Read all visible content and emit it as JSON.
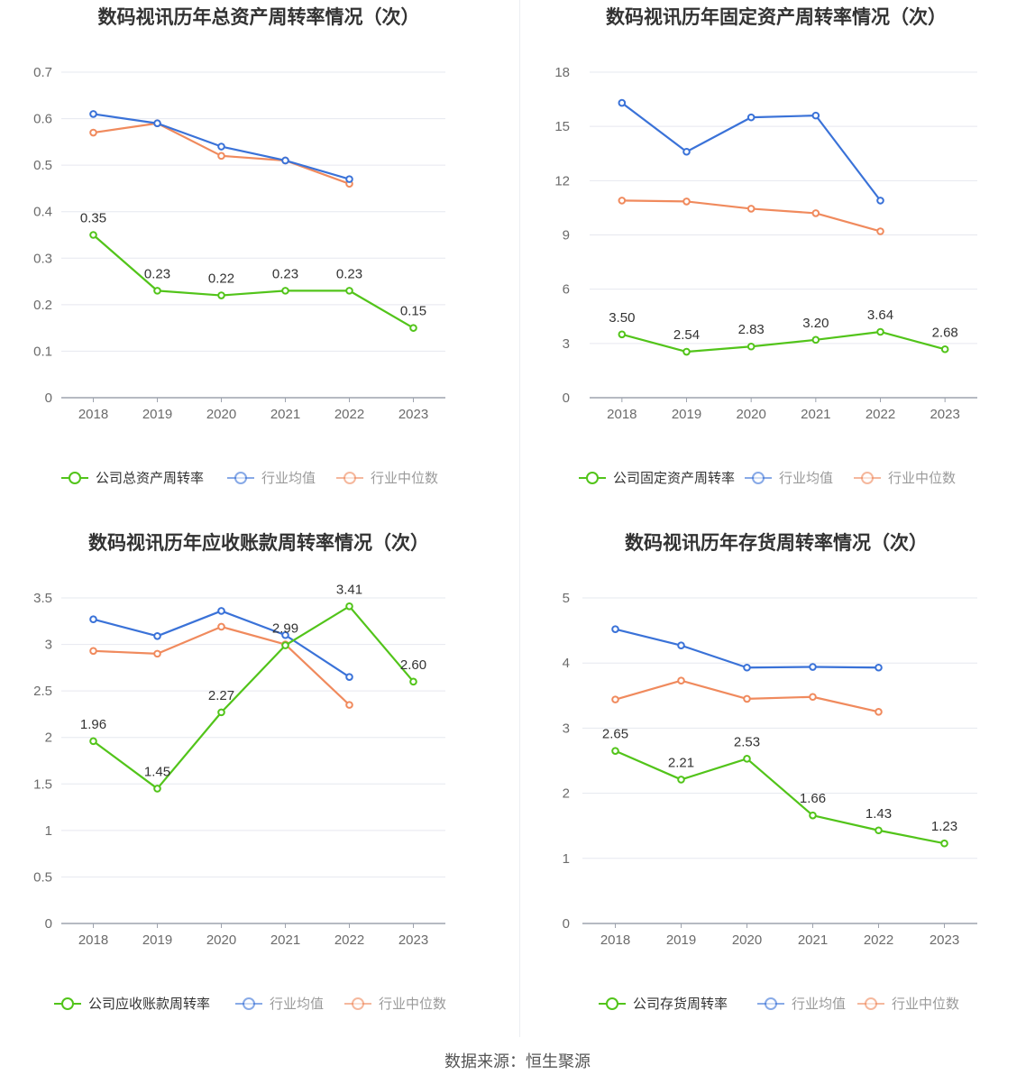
{
  "source": "数据来源：恒生聚源",
  "colors": {
    "company": "#52c41a",
    "avg": "#3a72d8",
    "median": "#f08a5d",
    "grid": "#e6e8ef",
    "axis": "#9ea3ae"
  },
  "legend_icon": "circle-line-icon",
  "chart_data": [
    {
      "type": "line",
      "title": "数码视讯历年总资产周转率情况（次）",
      "categories": [
        "2018",
        "2019",
        "2020",
        "2021",
        "2022",
        "2023"
      ],
      "ylim": [
        0,
        0.7
      ],
      "yticks": [
        0,
        0.1,
        0.2,
        0.3,
        0.4,
        0.5,
        0.6,
        0.7
      ],
      "ytick_labels": [
        "0",
        "0.1",
        "0.2",
        "0.3",
        "0.4",
        "0.5",
        "0.6",
        "0.7"
      ],
      "grid": true,
      "legend": "bottom",
      "series": [
        {
          "name": "公司总资产周转率",
          "color": "#52c41a",
          "values": [
            0.35,
            0.23,
            0.22,
            0.23,
            0.23,
            0.15
          ],
          "labels": [
            "0.35",
            "0.23",
            "0.22",
            "0.23",
            "0.23",
            "0.15"
          ]
        },
        {
          "name": "行业均值",
          "color": "#3a72d8",
          "values": [
            0.61,
            0.59,
            0.54,
            0.51,
            0.47,
            null
          ]
        },
        {
          "name": "行业中位数",
          "color": "#f08a5d",
          "values": [
            0.57,
            0.59,
            0.52,
            0.51,
            0.46,
            null
          ]
        }
      ]
    },
    {
      "type": "line",
      "title": "数码视讯历年固定资产周转率情况（次）",
      "categories": [
        "2018",
        "2019",
        "2020",
        "2021",
        "2022",
        "2023"
      ],
      "ylim": [
        0,
        18
      ],
      "yticks": [
        0,
        3,
        6,
        9,
        12,
        15,
        18
      ],
      "ytick_labels": [
        "0",
        "3",
        "6",
        "9",
        "12",
        "15",
        "18"
      ],
      "grid": true,
      "legend": "bottom",
      "series": [
        {
          "name": "公司固定资产周转率",
          "color": "#52c41a",
          "values": [
            3.5,
            2.54,
            2.83,
            3.2,
            3.64,
            2.68
          ],
          "labels": [
            "3.50",
            "2.54",
            "2.83",
            "3.20",
            "3.64",
            "2.68"
          ]
        },
        {
          "name": "行业均值",
          "color": "#3a72d8",
          "values": [
            16.3,
            13.6,
            15.5,
            15.6,
            10.9,
            null
          ]
        },
        {
          "name": "行业中位数",
          "color": "#f08a5d",
          "values": [
            10.9,
            10.85,
            10.45,
            10.2,
            9.2,
            null
          ]
        }
      ]
    },
    {
      "type": "line",
      "title": "数码视讯历年应收账款周转率情况（次）",
      "categories": [
        "2018",
        "2019",
        "2020",
        "2021",
        "2022",
        "2023"
      ],
      "ylim": [
        0,
        3.5
      ],
      "yticks": [
        0,
        0.5,
        1,
        1.5,
        2,
        2.5,
        3,
        3.5
      ],
      "ytick_labels": [
        "0",
        "0.5",
        "1",
        "1.5",
        "2",
        "2.5",
        "3",
        "3.5"
      ],
      "grid": true,
      "legend": "bottom",
      "series": [
        {
          "name": "公司应收账款周转率",
          "color": "#52c41a",
          "values": [
            1.96,
            1.45,
            2.27,
            2.99,
            3.41,
            2.6
          ],
          "labels": [
            "1.96",
            "1.45",
            "2.27",
            "2.99",
            "3.41",
            "2.60"
          ]
        },
        {
          "name": "行业均值",
          "color": "#3a72d8",
          "values": [
            3.27,
            3.09,
            3.36,
            3.1,
            2.65,
            null
          ]
        },
        {
          "name": "行业中位数",
          "color": "#f08a5d",
          "values": [
            2.93,
            2.9,
            3.19,
            3.0,
            2.35,
            null
          ]
        }
      ]
    },
    {
      "type": "line",
      "title": "数码视讯历年存货周转率情况（次）",
      "categories": [
        "2018",
        "2019",
        "2020",
        "2021",
        "2022",
        "2023"
      ],
      "ylim": [
        0,
        5
      ],
      "yticks": [
        0,
        1,
        2,
        3,
        4,
        5
      ],
      "ytick_labels": [
        "0",
        "1",
        "2",
        "3",
        "4",
        "5"
      ],
      "grid": true,
      "legend": "bottom",
      "series": [
        {
          "name": "公司存货周转率",
          "color": "#52c41a",
          "values": [
            2.65,
            2.21,
            2.53,
            1.66,
            1.43,
            1.23
          ],
          "labels": [
            "2.65",
            "2.21",
            "2.53",
            "1.66",
            "1.43",
            "1.23"
          ]
        },
        {
          "name": "行业均值",
          "color": "#3a72d8",
          "values": [
            4.52,
            4.27,
            3.93,
            3.94,
            3.93,
            null
          ]
        },
        {
          "name": "行业中位数",
          "color": "#f08a5d",
          "values": [
            3.44,
            3.73,
            3.45,
            3.48,
            3.25,
            null
          ]
        }
      ]
    }
  ]
}
